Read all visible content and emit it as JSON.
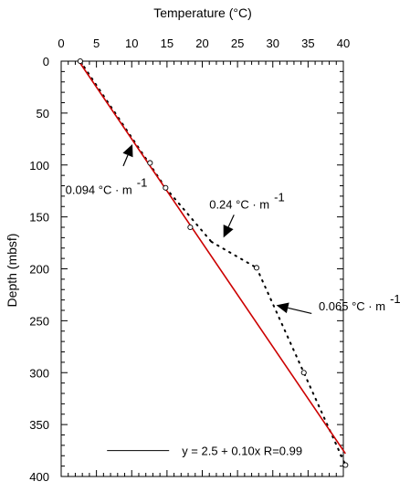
{
  "chart_data": {
    "type": "scatter",
    "xlabel": "Temperature (°C)",
    "ylabel": "Depth (mbsf)",
    "xlim": [
      0,
      40
    ],
    "ylim": [
      400,
      0
    ],
    "x_ticks": [
      "0",
      "5",
      "10",
      "15",
      "20",
      "25",
      "30",
      "35",
      "40"
    ],
    "y_ticks": [
      "0",
      "50",
      "100",
      "150",
      "200",
      "250",
      "300",
      "350",
      "400"
    ],
    "x_axis_position": "top",
    "grid": false,
    "series": [
      {
        "kind": "points",
        "marker": "open-circle",
        "points": [
          {
            "x": 2.7,
            "y": 0
          },
          {
            "x": 12.6,
            "y": 98
          },
          {
            "x": 14.8,
            "y": 122
          },
          {
            "x": 18.3,
            "y": 160
          },
          {
            "x": 27.7,
            "y": 199
          },
          {
            "x": 34.4,
            "y": 300
          },
          {
            "x": 40.3,
            "y": 389
          }
        ]
      },
      {
        "kind": "dotted-segments",
        "color": "#000000",
        "segments": [
          {
            "x1": 2.7,
            "y1": 0,
            "x2": 14.8,
            "y2": 122
          },
          {
            "x1": 14.8,
            "y1": 122,
            "x2": 21.3,
            "y2": 174
          },
          {
            "x1": 21.3,
            "y1": 174,
            "x2": 27.7,
            "y2": 199
          },
          {
            "x1": 27.7,
            "y1": 199,
            "x2": 40.3,
            "y2": 389
          }
        ]
      },
      {
        "kind": "fit-line",
        "color": "#cc0000",
        "x_start": 2.5,
        "x_end": 40.3,
        "intercept": 2.5,
        "slope_per_depth": 0.1
      }
    ],
    "annotations": [
      {
        "id": "gradient-1",
        "label": "0.094 °C · m",
        "superscript": "-1",
        "text_at": {
          "x": 0.6,
          "y": 128
        },
        "arrow_from": {
          "x": 8.8,
          "y": 101
        },
        "arrow_to": {
          "x": 10.1,
          "y": 80
        }
      },
      {
        "id": "gradient-2",
        "label": "0.24 °C · m",
        "superscript": "-1",
        "text_at": {
          "x": 21.0,
          "y": 142
        },
        "arrow_from": {
          "x": 24.5,
          "y": 148
        },
        "arrow_to": {
          "x": 23.0,
          "y": 170
        }
      },
      {
        "id": "gradient-3",
        "label": "0.065 °C · m",
        "superscript": "-1",
        "text_at": {
          "x": 36.5,
          "y": 240
        },
        "arrow_from": {
          "x": 35.5,
          "y": 243
        },
        "arrow_to": {
          "x": 30.5,
          "y": 235
        }
      }
    ],
    "legend": {
      "text": "y = 2.5 + 0.10x  R=0.99",
      "position": "bottom",
      "line_x": [
        6.5,
        15.3
      ],
      "y": 375
    }
  }
}
